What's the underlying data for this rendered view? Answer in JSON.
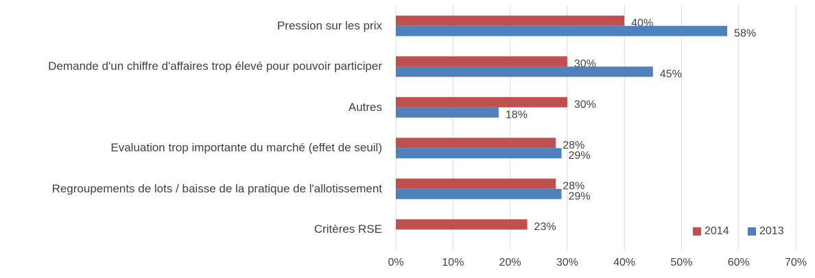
{
  "chart_data": {
    "type": "bar",
    "orientation": "horizontal",
    "categories": [
      "Pression sur les prix",
      "Demande d'un chiffre d'affaires trop élevé pour pouvoir participer",
      "Autres",
      "Evaluation trop importante du marché (effet de seuil)",
      "Regroupements de lots / baisse de la pratique de l'allotissement",
      "Critères RSE"
    ],
    "series": [
      {
        "name": "2014",
        "color": "#c0504d",
        "values": [
          40,
          30,
          30,
          28,
          28,
          23
        ],
        "value_labels": [
          "40%",
          "30%",
          "30%",
          "28%",
          "28%",
          "23%"
        ]
      },
      {
        "name": "2013",
        "color": "#4f81bd",
        "values": [
          58,
          45,
          18,
          29,
          29,
          null
        ],
        "value_labels": [
          "58%",
          "45%",
          "18%",
          "29%",
          "29%",
          null
        ]
      }
    ],
    "xlim": [
      0,
      70
    ],
    "xticks": [
      {
        "value": 0,
        "label": "0%"
      },
      {
        "value": 10,
        "label": "10%"
      },
      {
        "value": 20,
        "label": "20%"
      },
      {
        "value": 30,
        "label": "30%"
      },
      {
        "value": 40,
        "label": "40%"
      },
      {
        "value": 50,
        "label": "50%"
      },
      {
        "value": 60,
        "label": "60%"
      },
      {
        "value": 70,
        "label": "70%"
      }
    ],
    "grid": true,
    "legend": "lower right"
  }
}
